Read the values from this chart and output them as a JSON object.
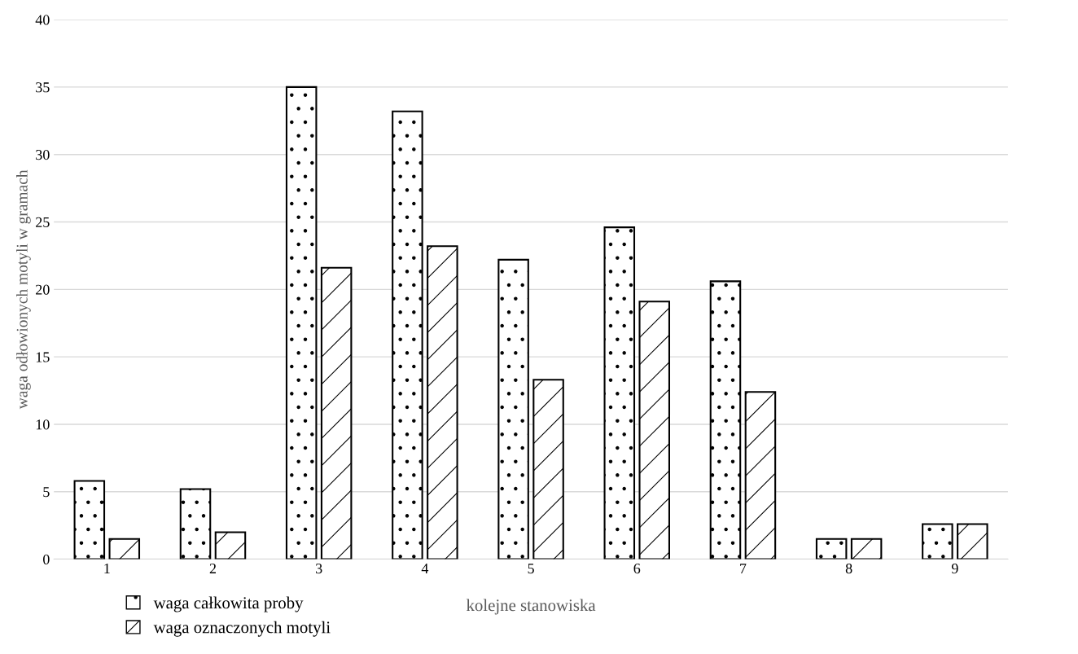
{
  "chart_data": {
    "type": "bar",
    "xlabel": "kolejne stanowiska",
    "ylabel": "waga odłowionych motyli w gramach",
    "categories": [
      "1",
      "2",
      "3",
      "4",
      "5",
      "6",
      "7",
      "8",
      "9"
    ],
    "series": [
      {
        "name": "waga całkowita proby",
        "color": "#000000",
        "values": [
          5.8,
          5.2,
          35.0,
          33.2,
          22.2,
          24.6,
          20.6,
          1.5,
          2.6
        ]
      },
      {
        "name": "waga oznaczonych motyli",
        "color": "#000000",
        "values": [
          1.5,
          2.0,
          21.6,
          23.2,
          13.3,
          19.1,
          12.4,
          1.5,
          2.6
        ]
      }
    ],
    "ylim": [
      0,
      40
    ],
    "yticks": [
      0,
      5,
      10,
      15,
      20,
      25,
      30,
      35,
      40
    ],
    "grid": "y",
    "legend": "bottom left"
  }
}
